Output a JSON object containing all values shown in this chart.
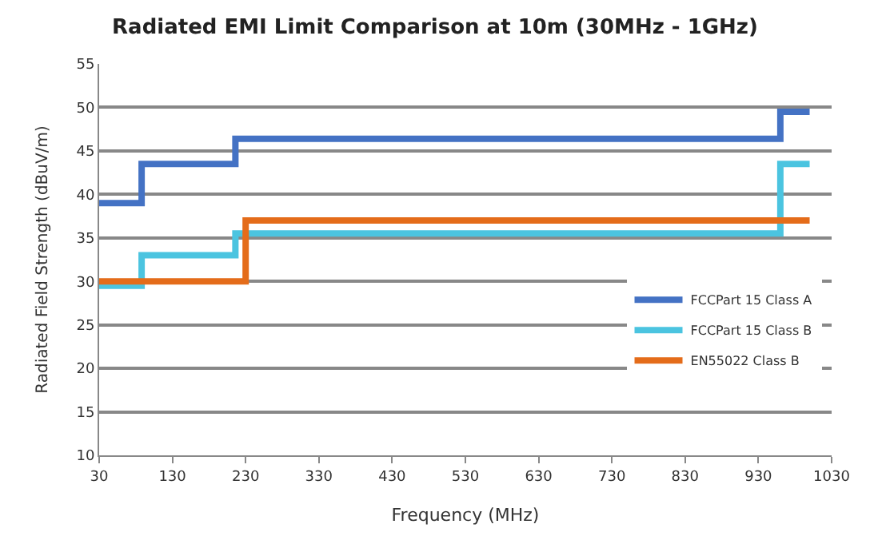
{
  "chart_data": {
    "type": "step",
    "title": "Radiated EMI Limit Comparison at 10m (30MHz - 1GHz)",
    "xlabel": "Frequency (MHz)",
    "ylabel": "Radiated Field Strength (dBuV/m)",
    "series": [
      {
        "name": "FCCPart 15 Class A",
        "color": "#4472c4",
        "x": [
          30,
          88,
          216,
          960,
          1000
        ],
        "values": [
          39,
          43.5,
          46.4,
          49.5,
          49.5
        ]
      },
      {
        "name": "FCCPart 15 Class B",
        "color": "#4bc4e0",
        "x": [
          30,
          88,
          216,
          960,
          1000
        ],
        "values": [
          29.5,
          33,
          35.5,
          43.5,
          43.5
        ]
      },
      {
        "name": "EN55022 Class B",
        "color": "#e46c1a",
        "x": [
          30,
          230,
          1000
        ],
        "values": [
          30,
          37,
          37
        ]
      }
    ],
    "xlim": [
      30,
      1030
    ],
    "xticks": [
      30,
      130,
      230,
      330,
      430,
      530,
      630,
      730,
      830,
      930,
      1030
    ],
    "ylim": [
      10,
      55
    ],
    "yticks": [
      10,
      15,
      20,
      25,
      30,
      35,
      40,
      45,
      50,
      55
    ],
    "grid": "y",
    "legend": "right",
    "marker": "none",
    "line_style": "solid"
  }
}
